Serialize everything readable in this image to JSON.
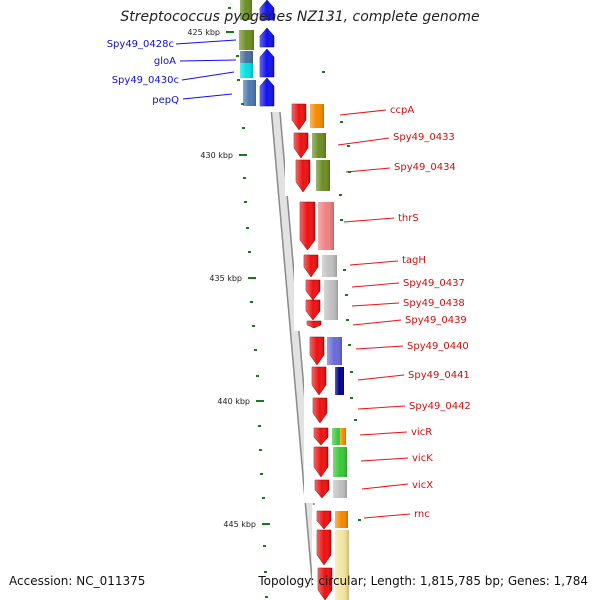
{
  "title": "Streptococcus pyogenes NZ131, complete genome",
  "footer": {
    "accession": "Accession: NC_011375",
    "topology": "Topology: circular; Length: 1,815,785 bp; Genes: 1,784"
  },
  "ruler": {
    "ticks": [
      "425 kbp",
      "430 kbp",
      "435 kbp",
      "440 kbp",
      "445 kbp"
    ]
  },
  "genes_reverse": [
    "Spy49_0428c",
    "gloA",
    "Spy49_0430c",
    "pepQ"
  ],
  "genes_forward": [
    "ccpA",
    "Spy49_0433",
    "Spy49_0434",
    "thrS",
    "tagH",
    "Spy49_0437",
    "Spy49_0438",
    "Spy49_0439",
    "Spy49_0440",
    "Spy49_0441",
    "Spy49_0442",
    "vicR",
    "vicK",
    "vicX",
    "rnc"
  ],
  "colors": {
    "reverse_strand": "#1010ee",
    "forward_strand": "#ee1111",
    "blue_label": "#1010c8",
    "red_label": "#cc1010",
    "tick": "#1a7a1a",
    "backbone": "#b8b8b8"
  }
}
